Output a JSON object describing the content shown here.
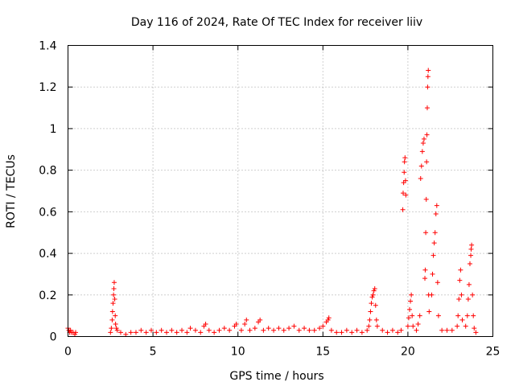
{
  "chart_data": {
    "type": "scatter",
    "title": "Day 116 of 2024, Rate Of TEC Index for receiver liiv",
    "xlabel": "GPS time / hours",
    "ylabel": "ROTI / TECUs",
    "xlim": [
      0,
      25
    ],
    "ylim": [
      0,
      1.4
    ],
    "xticks": [
      0,
      5,
      10,
      15,
      20,
      25
    ],
    "xtick_labels": [
      "0",
      "5",
      "10",
      "15",
      "20",
      "25"
    ],
    "yticks": [
      0,
      0.2,
      0.4,
      0.6,
      0.8,
      1.0,
      1.2,
      1.4
    ],
    "ytick_labels": [
      "0",
      "0.2",
      "0.4",
      "0.6",
      "0.8",
      "1",
      "1.2",
      "1.4"
    ],
    "grid": true,
    "marker": "plus",
    "color": "#ff0000",
    "series": [
      {
        "name": "ROTI",
        "points": [
          [
            0.0,
            0.04
          ],
          [
            0.05,
            0.03
          ],
          [
            0.1,
            0.02
          ],
          [
            0.15,
            0.03
          ],
          [
            0.2,
            0.02
          ],
          [
            0.3,
            0.02
          ],
          [
            0.4,
            0.01
          ],
          [
            0.45,
            0.02
          ],
          [
            2.5,
            0.02
          ],
          [
            2.55,
            0.04
          ],
          [
            2.6,
            0.08
          ],
          [
            2.62,
            0.12
          ],
          [
            2.65,
            0.16
          ],
          [
            2.68,
            0.2
          ],
          [
            2.7,
            0.23
          ],
          [
            2.72,
            0.26
          ],
          [
            2.75,
            0.18
          ],
          [
            2.78,
            0.1
          ],
          [
            2.8,
            0.06
          ],
          [
            2.85,
            0.04
          ],
          [
            2.9,
            0.03
          ],
          [
            3.1,
            0.02
          ],
          [
            3.4,
            0.01
          ],
          [
            3.7,
            0.02
          ],
          [
            4.0,
            0.02
          ],
          [
            4.3,
            0.03
          ],
          [
            4.6,
            0.02
          ],
          [
            4.9,
            0.03
          ],
          [
            5.2,
            0.02
          ],
          [
            5.5,
            0.03
          ],
          [
            5.8,
            0.02
          ],
          [
            6.1,
            0.03
          ],
          [
            6.4,
            0.02
          ],
          [
            6.7,
            0.03
          ],
          [
            7.0,
            0.02
          ],
          [
            7.2,
            0.04
          ],
          [
            7.5,
            0.03
          ],
          [
            7.8,
            0.02
          ],
          [
            8.0,
            0.05
          ],
          [
            8.1,
            0.06
          ],
          [
            8.3,
            0.03
          ],
          [
            8.6,
            0.02
          ],
          [
            8.9,
            0.03
          ],
          [
            9.2,
            0.04
          ],
          [
            9.5,
            0.03
          ],
          [
            9.8,
            0.05
          ],
          [
            9.9,
            0.06
          ],
          [
            10.2,
            0.03
          ],
          [
            10.4,
            0.06
          ],
          [
            10.5,
            0.08
          ],
          [
            10.7,
            0.03
          ],
          [
            11.0,
            0.04
          ],
          [
            11.2,
            0.07
          ],
          [
            11.3,
            0.08
          ],
          [
            11.5,
            0.03
          ],
          [
            11.8,
            0.04
          ],
          [
            12.1,
            0.03
          ],
          [
            12.4,
            0.04
          ],
          [
            12.7,
            0.03
          ],
          [
            13.0,
            0.04
          ],
          [
            13.3,
            0.05
          ],
          [
            13.6,
            0.03
          ],
          [
            13.9,
            0.04
          ],
          [
            14.2,
            0.03
          ],
          [
            14.5,
            0.03
          ],
          [
            14.8,
            0.04
          ],
          [
            15.0,
            0.05
          ],
          [
            15.2,
            0.07
          ],
          [
            15.3,
            0.08
          ],
          [
            15.35,
            0.09
          ],
          [
            15.5,
            0.03
          ],
          [
            15.8,
            0.02
          ],
          [
            16.1,
            0.02
          ],
          [
            16.4,
            0.03
          ],
          [
            16.7,
            0.02
          ],
          [
            17.0,
            0.03
          ],
          [
            17.3,
            0.02
          ],
          [
            17.6,
            0.03
          ],
          [
            17.7,
            0.05
          ],
          [
            17.75,
            0.08
          ],
          [
            17.8,
            0.12
          ],
          [
            17.85,
            0.16
          ],
          [
            17.9,
            0.19
          ],
          [
            17.95,
            0.2
          ],
          [
            18.0,
            0.22
          ],
          [
            18.05,
            0.23
          ],
          [
            18.1,
            0.15
          ],
          [
            18.15,
            0.08
          ],
          [
            18.2,
            0.05
          ],
          [
            18.5,
            0.03
          ],
          [
            18.8,
            0.02
          ],
          [
            19.1,
            0.03
          ],
          [
            19.4,
            0.02
          ],
          [
            19.6,
            0.03
          ],
          [
            19.7,
            0.61
          ],
          [
            19.72,
            0.69
          ],
          [
            19.75,
            0.74
          ],
          [
            19.78,
            0.79
          ],
          [
            19.8,
            0.84
          ],
          [
            19.83,
            0.86
          ],
          [
            19.86,
            0.75
          ],
          [
            19.88,
            0.68
          ],
          [
            20.0,
            0.05
          ],
          [
            20.05,
            0.09
          ],
          [
            20.1,
            0.13
          ],
          [
            20.15,
            0.17
          ],
          [
            20.2,
            0.2
          ],
          [
            20.25,
            0.1
          ],
          [
            20.3,
            0.05
          ],
          [
            20.5,
            0.03
          ],
          [
            20.6,
            0.06
          ],
          [
            20.7,
            0.1
          ],
          [
            20.75,
            0.76
          ],
          [
            20.8,
            0.82
          ],
          [
            20.85,
            0.89
          ],
          [
            20.9,
            0.93
          ],
          [
            20.95,
            0.95
          ],
          [
            21.0,
            0.28
          ],
          [
            21.02,
            0.32
          ],
          [
            21.05,
            0.5
          ],
          [
            21.08,
            0.66
          ],
          [
            21.1,
            0.84
          ],
          [
            21.12,
            0.97
          ],
          [
            21.14,
            1.1
          ],
          [
            21.16,
            1.2
          ],
          [
            21.18,
            1.25
          ],
          [
            21.2,
            1.28
          ],
          [
            21.22,
            0.2
          ],
          [
            21.25,
            0.12
          ],
          [
            21.4,
            0.2
          ],
          [
            21.45,
            0.3
          ],
          [
            21.5,
            0.39
          ],
          [
            21.55,
            0.45
          ],
          [
            21.6,
            0.5
          ],
          [
            21.65,
            0.59
          ],
          [
            21.7,
            0.63
          ],
          [
            21.75,
            0.26
          ],
          [
            21.8,
            0.1
          ],
          [
            22.0,
            0.03
          ],
          [
            22.3,
            0.03
          ],
          [
            22.6,
            0.03
          ],
          [
            22.9,
            0.05
          ],
          [
            22.95,
            0.1
          ],
          [
            23.0,
            0.18
          ],
          [
            23.05,
            0.27
          ],
          [
            23.1,
            0.32
          ],
          [
            23.15,
            0.2
          ],
          [
            23.2,
            0.08
          ],
          [
            23.4,
            0.05
          ],
          [
            23.5,
            0.1
          ],
          [
            23.55,
            0.18
          ],
          [
            23.6,
            0.25
          ],
          [
            23.65,
            0.35
          ],
          [
            23.7,
            0.39
          ],
          [
            23.72,
            0.42
          ],
          [
            23.75,
            0.44
          ],
          [
            23.8,
            0.2
          ],
          [
            23.85,
            0.1
          ],
          [
            23.9,
            0.04
          ],
          [
            24.0,
            0.02
          ]
        ]
      }
    ]
  }
}
